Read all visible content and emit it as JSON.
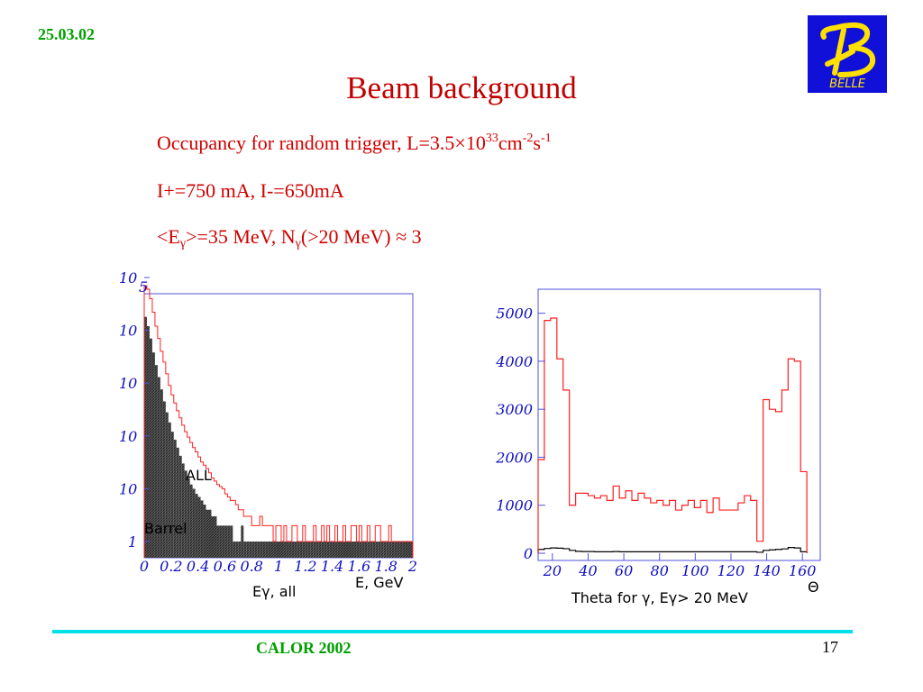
{
  "header": {
    "date": "25.03.02",
    "logo_text": "BELLE"
  },
  "title": "Beam background",
  "info": {
    "line1": {
      "prefix": "Occupancy for random trigger,   L=3.5×10",
      "exp1": "33",
      "mid": "cm",
      "exp2": "-2",
      "s": "s",
      "exp3": "-1"
    },
    "line2": "I+=750 mA, I-=650mA",
    "line3": {
      "a": "<E",
      "sub1": "γ",
      "b": ">=35 MeV, N",
      "sub2": "γ",
      "c": "(>20 MeV) ≈ 3"
    }
  },
  "footer": {
    "conference": "CALOR 2002",
    "page": "17"
  },
  "colors": {
    "accent_red": "#ff2020",
    "axis_blue": "#1010c0",
    "footer_cyan": "#00e0e8",
    "date_green": "#00a000"
  },
  "chart_data": [
    {
      "type": "histogram",
      "xlabel": "E, GeV",
      "x_annotation": "Eγ, all",
      "x_ticks": [
        "0",
        "0.2",
        "0.4",
        "0.6",
        "0.8",
        "1",
        "1.2",
        "1.4",
        "1.6",
        "1.8",
        "2"
      ],
      "y_ticks": [
        "10",
        "10",
        "10",
        "10",
        "10",
        "1"
      ],
      "y_exponent": "5",
      "y_scale": "log",
      "xlim": [
        0,
        2
      ],
      "ylim": [
        1,
        100000
      ],
      "bin_width": 0.02,
      "series": [
        {
          "name": "ALL",
          "style": "red outline",
          "values": [
            70000,
            60000,
            40000,
            22000,
            12000,
            7000,
            4000,
            2500,
            1500,
            900,
            600,
            420,
            300,
            220,
            160,
            120,
            95,
            75,
            60,
            50,
            40,
            32,
            28,
            24,
            20,
            16,
            14,
            12,
            11,
            10,
            8,
            7,
            6,
            6,
            5,
            4,
            4,
            3,
            3,
            3,
            2,
            2,
            2,
            3,
            2,
            2,
            2,
            2,
            1,
            2,
            2,
            1,
            2,
            1,
            1,
            2,
            2,
            1,
            1,
            2,
            1,
            1,
            1,
            2,
            1,
            1,
            2,
            1,
            2,
            1,
            1,
            2,
            1,
            1,
            2,
            1,
            1,
            2,
            2,
            1,
            2,
            1,
            1,
            2,
            1,
            1,
            2,
            2,
            1,
            1,
            1,
            2,
            1,
            1,
            1,
            1,
            1,
            1,
            1,
            1
          ]
        },
        {
          "name": "Barrel",
          "style": "filled black hatched",
          "values": [
            18000,
            12000,
            7000,
            3800,
            2200,
            1300,
            760,
            450,
            280,
            180,
            120,
            85,
            60,
            42,
            30,
            22,
            16,
            12,
            10,
            8,
            7,
            6,
            5,
            4,
            4,
            3,
            3,
            2,
            2,
            2,
            2,
            2,
            2,
            1,
            1,
            1,
            2,
            1,
            1,
            1,
            1,
            1,
            1,
            1,
            1,
            1,
            1,
            1,
            1,
            1,
            1,
            1,
            1,
            1,
            1,
            1,
            1,
            1,
            1,
            1,
            1,
            1,
            1,
            1,
            1,
            1,
            1,
            1,
            1,
            1,
            1,
            1,
            1,
            1,
            1,
            1,
            1,
            1,
            1,
            1,
            1,
            1,
            1,
            1,
            1,
            1,
            1,
            1,
            1,
            1,
            1,
            1,
            1,
            1,
            1,
            1,
            1,
            1,
            1,
            1
          ]
        }
      ]
    },
    {
      "type": "histogram",
      "xlabel": "Theta for γ, Eγ> 20 MeV",
      "x_symbol": "Θ",
      "x_ticks": [
        "20",
        "40",
        "60",
        "80",
        "100",
        "120",
        "140",
        "160"
      ],
      "y_ticks": [
        "0",
        "1000",
        "2000",
        "3000",
        "4000",
        "5000"
      ],
      "xlim": [
        12,
        170
      ],
      "ylim": [
        0,
        5500
      ],
      "bin_width": 3.5,
      "x_start": 12,
      "series": [
        {
          "name": "ALL",
          "style": "red outline",
          "values": [
            1950,
            4850,
            4900,
            4050,
            3400,
            1000,
            1250,
            1250,
            1200,
            1150,
            1200,
            1100,
            1400,
            1150,
            1300,
            1100,
            1250,
            1150,
            1050,
            1100,
            1000,
            1100,
            900,
            1000,
            1100,
            950,
            1100,
            850,
            1150,
            900,
            900,
            900,
            1050,
            1200,
            1100,
            250,
            3200,
            3000,
            2950,
            3400,
            4050,
            4000,
            1700
          ]
        },
        {
          "name": "Barrel",
          "style": "black outline",
          "values": [
            80,
            100,
            110,
            105,
            95,
            60,
            40,
            35,
            35,
            30,
            30,
            30,
            35,
            30,
            30,
            30,
            30,
            30,
            30,
            30,
            30,
            30,
            30,
            30,
            30,
            30,
            30,
            30,
            30,
            30,
            30,
            30,
            30,
            30,
            30,
            20,
            60,
            70,
            80,
            90,
            120,
            110,
            30
          ]
        }
      ]
    }
  ]
}
